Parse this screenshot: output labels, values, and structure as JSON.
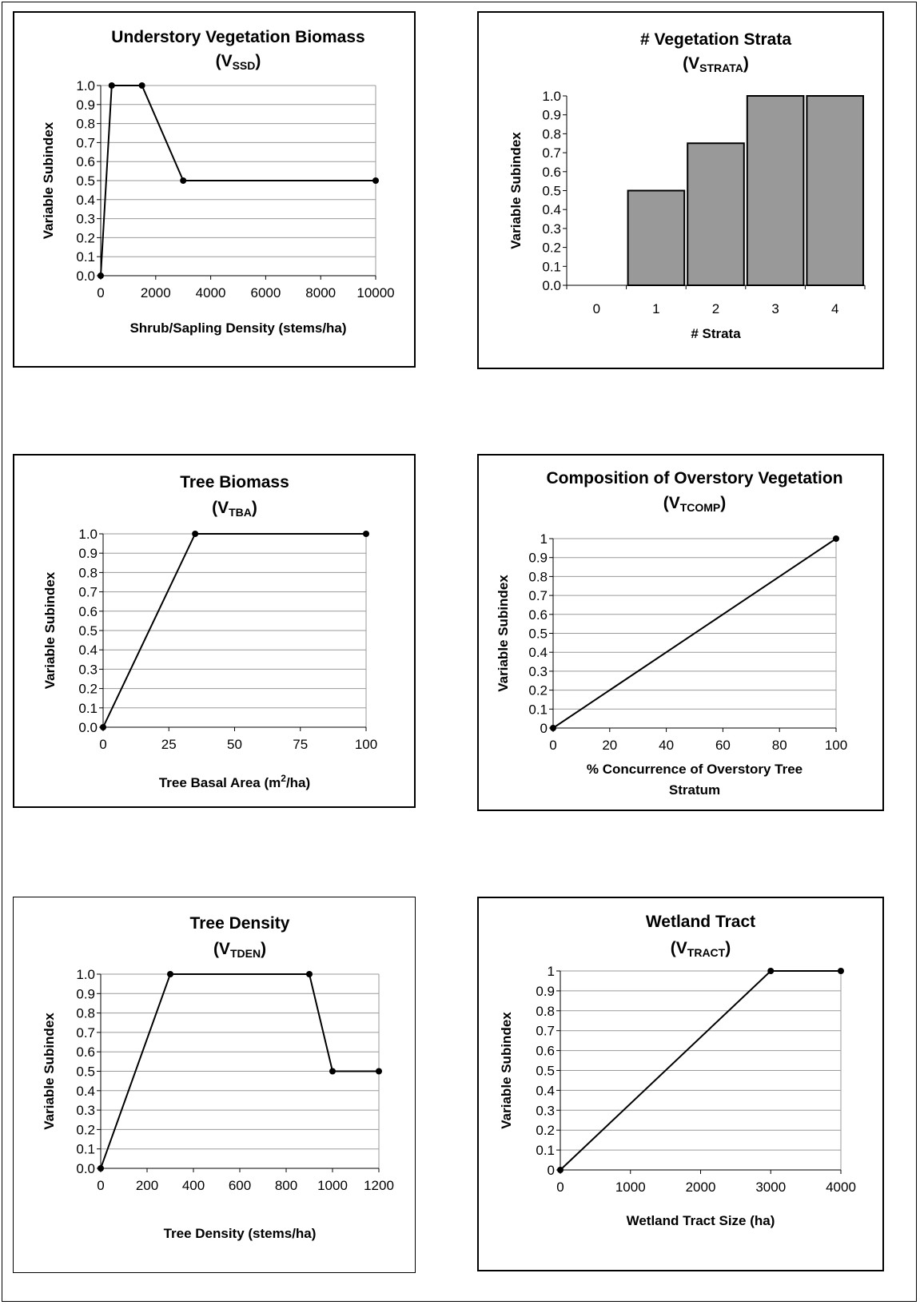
{
  "chart_data": [
    {
      "id": "vssd",
      "type": "line",
      "title": "Understory Vegetation Biomass",
      "subtitle": {
        "prefix": "(V",
        "sub": "SSD",
        "suffix": ")"
      },
      "xlabel": {
        "text": "Shrub/Sapling Density (stems/ha)"
      },
      "ylabel": "Variable Subindex",
      "xlim": [
        0,
        10000
      ],
      "ylim": [
        0,
        1
      ],
      "xticks": [
        0,
        2000,
        4000,
        6000,
        8000,
        10000
      ],
      "xtick_labels": [
        "0",
        "2000",
        "4000",
        "6000",
        "8000",
        "10000"
      ],
      "yticks": [
        0,
        0.1,
        0.2,
        0.3,
        0.4,
        0.5,
        0.6,
        0.7,
        0.8,
        0.9,
        1.0
      ],
      "ytick_labels": [
        "0.0",
        "0.1",
        "0.2",
        "0.3",
        "0.4",
        "0.5",
        "0.6",
        "0.7",
        "0.8",
        "0.9",
        "1.0"
      ],
      "grid": true,
      "series": [
        {
          "x": [
            0,
            400,
            1500,
            3000,
            10000
          ],
          "y": [
            0,
            1.0,
            1.0,
            0.5,
            0.5
          ]
        }
      ]
    },
    {
      "id": "vstrata",
      "type": "bar",
      "title": "# Vegetation Strata",
      "subtitle": {
        "prefix": "(V",
        "sub": "STRATA",
        "suffix": ")"
      },
      "xlabel": {
        "text": "# Strata"
      },
      "ylabel": "Variable Subindex",
      "ylim": [
        0,
        1
      ],
      "categories": [
        "0",
        "1",
        "2",
        "3",
        "4"
      ],
      "values": [
        0,
        0.5,
        0.75,
        1.0,
        1.0
      ],
      "yticks": [
        0,
        0.1,
        0.2,
        0.3,
        0.4,
        0.5,
        0.6,
        0.7,
        0.8,
        0.9,
        1.0
      ],
      "ytick_labels": [
        "0.0",
        "0.1",
        "0.2",
        "0.3",
        "0.4",
        "0.5",
        "0.6",
        "0.7",
        "0.8",
        "0.9",
        "1.0"
      ],
      "grid": false,
      "bar_color": "#999999"
    },
    {
      "id": "vtba",
      "type": "line",
      "title": "Tree Biomass",
      "subtitle": {
        "prefix": "(V",
        "sub": "TBA",
        "suffix": ")"
      },
      "xlabel": {
        "text": "Tree Basal Area (m",
        "sup": "2",
        "after": "/ha)"
      },
      "ylabel": "Variable Subindex",
      "xlim": [
        0,
        100
      ],
      "ylim": [
        0,
        1
      ],
      "xticks": [
        0,
        25,
        50,
        75,
        100
      ],
      "xtick_labels": [
        "0",
        "25",
        "50",
        "75",
        "100"
      ],
      "yticks": [
        0,
        0.1,
        0.2,
        0.3,
        0.4,
        0.5,
        0.6,
        0.7,
        0.8,
        0.9,
        1.0
      ],
      "ytick_labels": [
        "0.0",
        "0.1",
        "0.2",
        "0.3",
        "0.4",
        "0.5",
        "0.6",
        "0.7",
        "0.8",
        "0.9",
        "1.0"
      ],
      "grid": true,
      "series": [
        {
          "x": [
            0,
            35,
            100
          ],
          "y": [
            0,
            1.0,
            1.0
          ]
        }
      ]
    },
    {
      "id": "vtcomp",
      "type": "line",
      "title": "Composition of Overstory Vegetation",
      "subtitle": {
        "prefix": "(V",
        "sub": "TCOMP",
        "suffix": ")"
      },
      "xlabel": {
        "text": "% Concurrence of Overstory Tree",
        "line2": "Stratum"
      },
      "ylabel": "Variable Subindex",
      "xlim": [
        0,
        100
      ],
      "ylim": [
        0,
        1
      ],
      "xticks": [
        0,
        20,
        40,
        60,
        80,
        100
      ],
      "xtick_labels": [
        "0",
        "20",
        "40",
        "60",
        "80",
        "100"
      ],
      "yticks": [
        0,
        0.1,
        0.2,
        0.3,
        0.4,
        0.5,
        0.6,
        0.7,
        0.8,
        0.9,
        1.0
      ],
      "ytick_labels": [
        "0",
        "0.1",
        "0.2",
        "0.3",
        "0.4",
        "0.5",
        "0.6",
        "0.7",
        "0.8",
        "0.9",
        "1"
      ],
      "grid": true,
      "series": [
        {
          "x": [
            0,
            100
          ],
          "y": [
            0,
            1.0
          ]
        }
      ]
    },
    {
      "id": "vtden",
      "type": "line",
      "title": "Tree Density",
      "subtitle": {
        "prefix": "(V",
        "sub": "TDEN",
        "suffix": ")"
      },
      "xlabel": {
        "text": "Tree Density (stems/ha)"
      },
      "ylabel": "Variable Subindex",
      "xlim": [
        0,
        1200
      ],
      "ylim": [
        0,
        1
      ],
      "xticks": [
        0,
        200,
        400,
        600,
        800,
        1000,
        1200
      ],
      "xtick_labels": [
        "0",
        "200",
        "400",
        "600",
        "800",
        "1000",
        "1200"
      ],
      "yticks": [
        0,
        0.1,
        0.2,
        0.3,
        0.4,
        0.5,
        0.6,
        0.7,
        0.8,
        0.9,
        1.0
      ],
      "ytick_labels": [
        "0.0",
        "0.1",
        "0.2",
        "0.3",
        "0.4",
        "0.5",
        "0.6",
        "0.7",
        "0.8",
        "0.9",
        "1.0"
      ],
      "grid": true,
      "series": [
        {
          "x": [
            0,
            300,
            900,
            1000,
            1200
          ],
          "y": [
            0,
            1.0,
            1.0,
            0.5,
            0.5
          ]
        }
      ]
    },
    {
      "id": "vtract",
      "type": "line",
      "title": "Wetland Tract",
      "subtitle": {
        "prefix": "(V",
        "sub": "TRACT",
        "suffix": ")"
      },
      "xlabel": {
        "text": "Wetland Tract Size (ha)"
      },
      "ylabel": "Variable Subindex",
      "xlim": [
        0,
        4000
      ],
      "ylim": [
        0,
        1
      ],
      "xticks": [
        0,
        1000,
        2000,
        3000,
        4000
      ],
      "xtick_labels": [
        "0",
        "1000",
        "2000",
        "3000",
        "4000"
      ],
      "yticks": [
        0,
        0.1,
        0.2,
        0.3,
        0.4,
        0.5,
        0.6,
        0.7,
        0.8,
        0.9,
        1.0
      ],
      "ytick_labels": [
        "0",
        "0.1",
        "0.2",
        "0.3",
        "0.4",
        "0.5",
        "0.6",
        "0.7",
        "0.8",
        "0.9",
        "1"
      ],
      "grid": true,
      "series": [
        {
          "x": [
            0,
            3000,
            4000
          ],
          "y": [
            0,
            1.0,
            1.0
          ]
        }
      ]
    }
  ]
}
